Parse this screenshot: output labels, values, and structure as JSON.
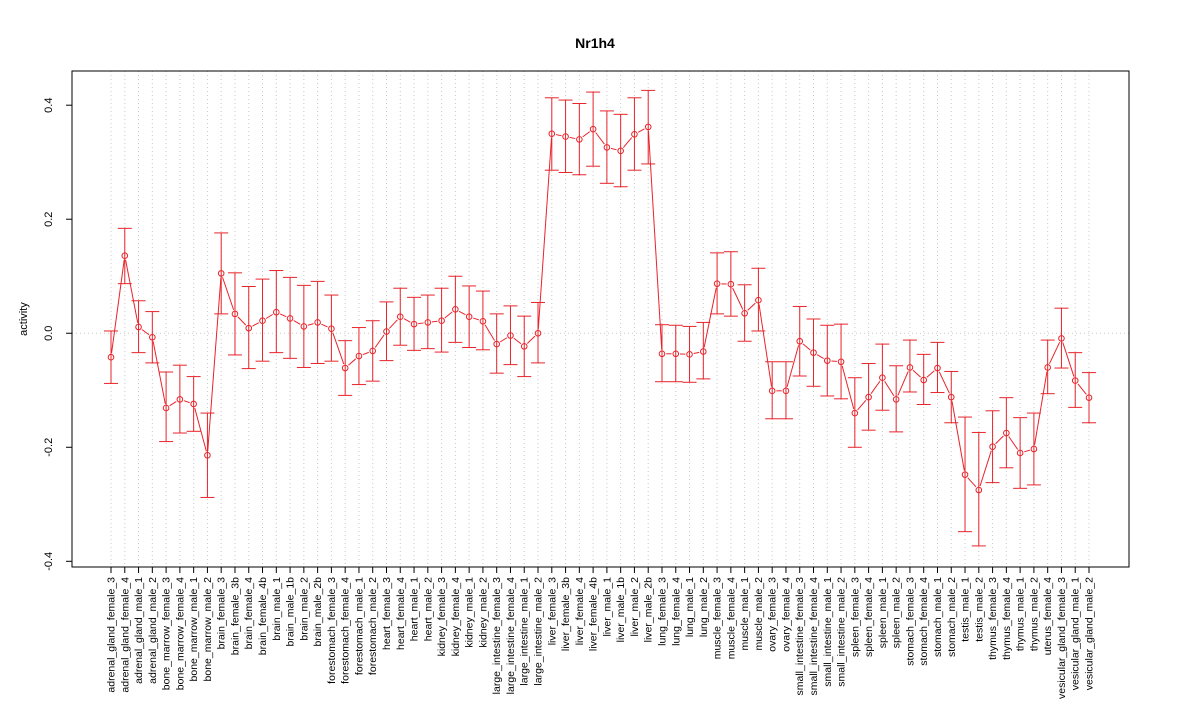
{
  "chart_data": {
    "type": "line",
    "title": "Nr1h4",
    "xlabel": "",
    "ylabel": "activity",
    "ylim": [
      -0.41,
      0.46
    ],
    "yticks": [
      -0.4,
      -0.2,
      0.0,
      0.2,
      0.4
    ],
    "ytick_labels": [
      "-0.4",
      "-0.2",
      "0.0",
      "0.2",
      "0.4"
    ],
    "grid": true,
    "color": "#e8232a",
    "grid_color": "#c8c8c8",
    "categories": [
      "adrenal_gland_female_3",
      "adrenal_gland_female_4",
      "adrenal_gland_male_1",
      "adrenal_gland_male_2",
      "bone_marrow_female_3",
      "bone_marrow_female_4",
      "bone_marrow_male_1",
      "bone_marrow_male_2",
      "brain_female_3",
      "brain_female_3b",
      "brain_female_4",
      "brain_female_4b",
      "brain_male_1",
      "brain_male_1b",
      "brain_male_2",
      "brain_male_2b",
      "forestomach_female_3",
      "forestomach_female_4",
      "forestomach_male_1",
      "forestomach_male_2",
      "heart_female_3",
      "heart_female_4",
      "heart_male_1",
      "heart_male_2",
      "kidney_female_3",
      "kidney_female_4",
      "kidney_male_1",
      "kidney_male_2",
      "large_intestine_female_3",
      "large_intestine_female_4",
      "large_intestine_male_1",
      "large_intestine_male_2",
      "liver_female_3",
      "liver_female_3b",
      "liver_female_4",
      "liver_female_4b",
      "liver_male_1",
      "liver_male_1b",
      "liver_male_2",
      "liver_male_2b",
      "lung_female_3",
      "lung_female_4",
      "lung_male_1",
      "lung_male_2",
      "muscle_female_3",
      "muscle_female_4",
      "muscle_male_1",
      "muscle_male_2",
      "ovary_female_3",
      "ovary_female_4",
      "small_intestine_female_3",
      "small_intestine_female_4",
      "small_intestine_male_1",
      "small_intestine_male_2",
      "spleen_female_3",
      "spleen_female_4",
      "spleen_male_1",
      "spleen_male_2",
      "stomach_female_3",
      "stomach_female_4",
      "stomach_male_1",
      "stomach_male_2",
      "testis_male_1",
      "testis_male_2",
      "thymus_female_3",
      "thymus_female_4",
      "thymus_male_1",
      "thymus_male_2",
      "uterus_female_4",
      "vesicular_gland_female_3",
      "vesicular_gland_male_1",
      "vesicular_gland_male_2"
    ],
    "values": [
      -0.042,
      0.136,
      0.011,
      -0.007,
      -0.131,
      -0.116,
      -0.124,
      -0.214,
      0.105,
      0.034,
      0.009,
      0.022,
      0.037,
      0.026,
      0.012,
      0.019,
      0.008,
      -0.061,
      -0.04,
      -0.031,
      0.003,
      0.029,
      0.016,
      0.019,
      0.022,
      0.042,
      0.029,
      0.021,
      -0.019,
      -0.004,
      -0.023,
      0.0,
      0.35,
      0.345,
      0.34,
      0.358,
      0.326,
      0.32,
      0.349,
      0.362,
      -0.036,
      -0.036,
      -0.037,
      -0.032,
      0.087,
      0.086,
      0.035,
      0.058,
      -0.101,
      -0.101,
      -0.014,
      -0.034,
      -0.048,
      -0.05,
      -0.14,
      -0.112,
      -0.078,
      -0.116,
      -0.06,
      -0.082,
      -0.061,
      -0.112,
      -0.248,
      -0.275,
      -0.199,
      -0.175,
      -0.21,
      -0.203,
      -0.06,
      -0.009,
      -0.083,
      -0.113
    ],
    "err_low": [
      -0.088,
      0.087,
      -0.034,
      -0.052,
      -0.19,
      -0.175,
      -0.172,
      -0.288,
      0.034,
      -0.038,
      -0.062,
      -0.049,
      -0.034,
      -0.044,
      -0.06,
      -0.053,
      -0.049,
      -0.109,
      -0.09,
      -0.084,
      -0.048,
      -0.021,
      -0.03,
      -0.027,
      -0.033,
      -0.016,
      -0.025,
      -0.029,
      -0.07,
      -0.055,
      -0.076,
      -0.052,
      0.286,
      0.282,
      0.278,
      0.293,
      0.263,
      0.257,
      0.286,
      0.297,
      -0.085,
      -0.085,
      -0.086,
      -0.08,
      0.034,
      0.03,
      -0.014,
      0.004,
      -0.15,
      -0.15,
      -0.075,
      -0.093,
      -0.11,
      -0.115,
      -0.2,
      -0.17,
      -0.135,
      -0.173,
      -0.103,
      -0.125,
      -0.104,
      -0.157,
      -0.348,
      -0.373,
      -0.262,
      -0.236,
      -0.272,
      -0.266,
      -0.106,
      -0.061,
      -0.13,
      -0.157
    ],
    "err_high": [
      0.004,
      0.184,
      0.057,
      0.038,
      -0.068,
      -0.056,
      -0.076,
      -0.14,
      0.176,
      0.106,
      0.082,
      0.095,
      0.11,
      0.098,
      0.084,
      0.091,
      0.067,
      -0.013,
      0.01,
      0.022,
      0.055,
      0.079,
      0.063,
      0.067,
      0.079,
      0.1,
      0.083,
      0.074,
      0.034,
      0.048,
      0.03,
      0.054,
      0.413,
      0.409,
      0.403,
      0.423,
      0.39,
      0.384,
      0.413,
      0.426,
      0.015,
      0.014,
      0.012,
      0.019,
      0.141,
      0.143,
      0.085,
      0.114,
      -0.05,
      -0.05,
      0.047,
      0.025,
      0.014,
      0.016,
      -0.078,
      -0.053,
      -0.019,
      -0.057,
      -0.012,
      -0.037,
      -0.016,
      -0.067,
      -0.147,
      -0.174,
      -0.136,
      -0.113,
      -0.148,
      -0.14,
      -0.012,
      0.044,
      -0.034,
      -0.069
    ]
  }
}
